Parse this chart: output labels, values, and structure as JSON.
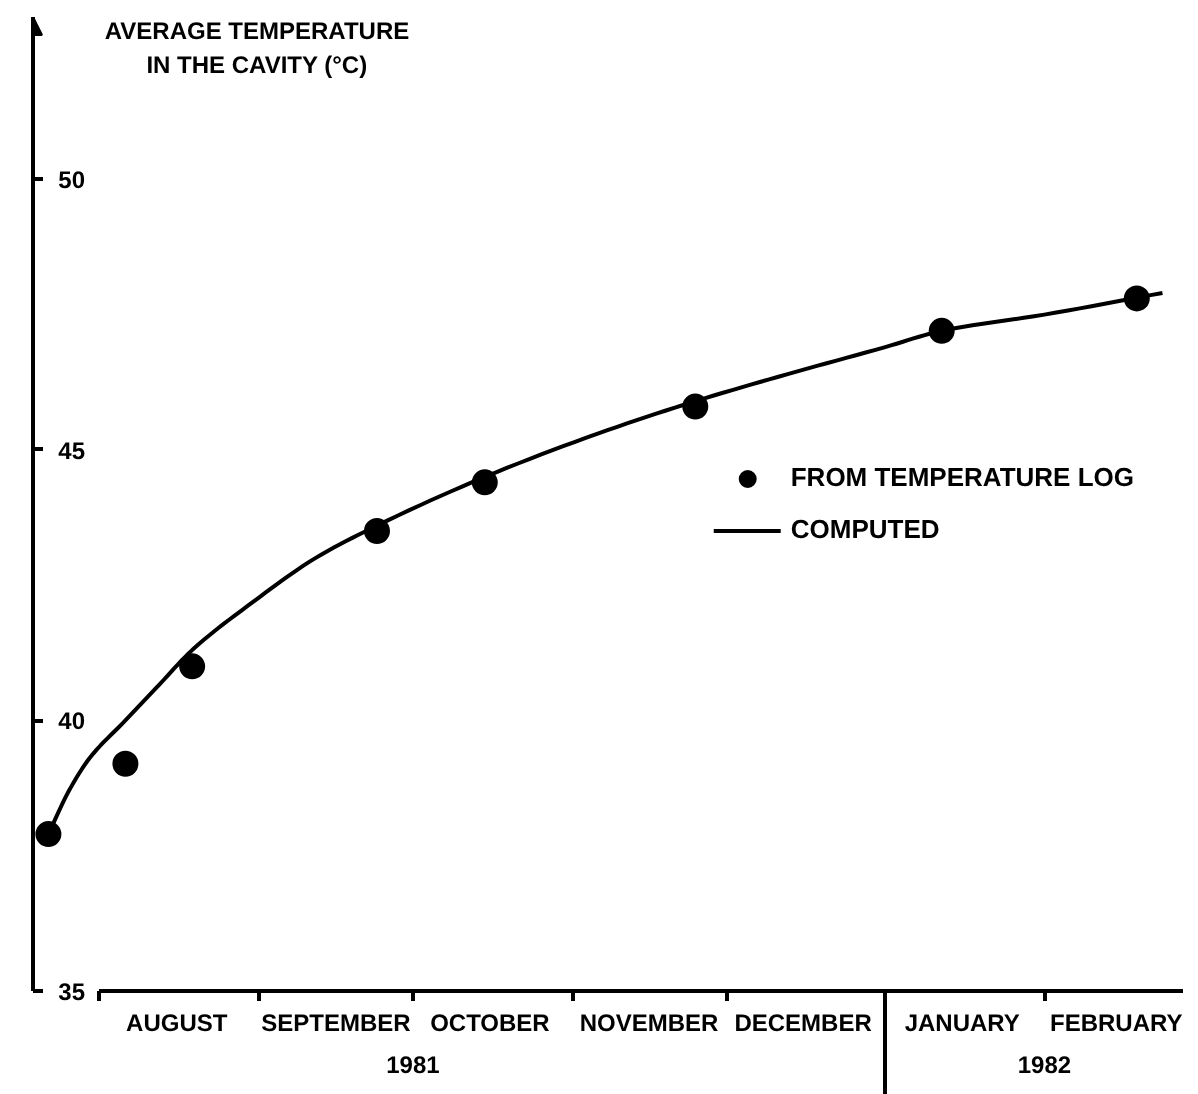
{
  "chart_data": {
    "type": "scatter",
    "ylabel": "AVERAGE TEMPERATURE IN THE CAVITY (°C)",
    "xlim": [
      "1981-07-19",
      "1982-02-28"
    ],
    "xticks": [
      {
        "value": "1981-08-01",
        "label": null
      },
      {
        "value": "1981-08-16",
        "label": "AUGUST"
      },
      {
        "value": "1981-09-01",
        "label": null
      },
      {
        "value": "1981-09-16",
        "label": "SEPTEMBER"
      },
      {
        "value": "1981-10-01",
        "label": null
      },
      {
        "value": "1981-10-16",
        "label": "OCTOBER"
      },
      {
        "value": "1981-11-01",
        "label": null
      },
      {
        "value": "1981-11-16",
        "label": "NOVEMBER"
      },
      {
        "value": "1981-12-01",
        "label": null
      },
      {
        "value": "1981-12-16",
        "label": "DECEMBER"
      },
      {
        "value": "1982-01-01",
        "label": null
      },
      {
        "value": "1982-01-16",
        "label": "JANUARY"
      },
      {
        "value": "1982-02-01",
        "label": null
      },
      {
        "value": "1982-02-15",
        "label": "FEBRUARY"
      }
    ],
    "x2lim": [
      "1981-07-19",
      "1982-02-28"
    ],
    "x2ticks": [
      {
        "value": "1981-10-01",
        "label": "1981"
      },
      {
        "value": "1982-01-01",
        "label": null
      },
      {
        "value": "1982-02-01",
        "label": "1982"
      }
    ],
    "ylim": [
      35,
      53
    ],
    "yticks": [
      35,
      40,
      45,
      50
    ],
    "legend": "right",
    "series": [
      {
        "name": "FROM TEMPERATURE LOG",
        "marker": "circle",
        "color": "#000000",
        "x": [
          "1981-07-22",
          "1981-08-06",
          "1981-08-19",
          "1981-09-24",
          "1981-10-15",
          "1981-11-25",
          "1982-01-12",
          "1982-02-19"
        ],
        "values": [
          37.9,
          39.2,
          41.0,
          43.5,
          44.4,
          45.8,
          47.2,
          47.8
        ]
      },
      {
        "name": "COMPUTED",
        "type": "line",
        "line_style": "solid",
        "color": "#000000",
        "x": [
          "1981-07-22",
          "1981-07-26",
          "1981-07-30",
          "1981-08-06",
          "1981-08-12",
          "1981-08-19",
          "1981-08-31",
          "1981-09-12",
          "1981-09-24",
          "1981-10-15",
          "1981-11-06",
          "1981-11-25",
          "1981-12-13",
          "1982-01-01",
          "1982-01-12",
          "1982-02-01",
          "1982-02-24"
        ],
        "values": [
          37.9,
          38.7,
          39.3,
          40.0,
          40.6,
          41.3,
          42.2,
          43.0,
          43.6,
          44.5,
          45.3,
          45.9,
          46.4,
          46.9,
          47.2,
          47.5,
          47.9
        ]
      }
    ]
  }
}
